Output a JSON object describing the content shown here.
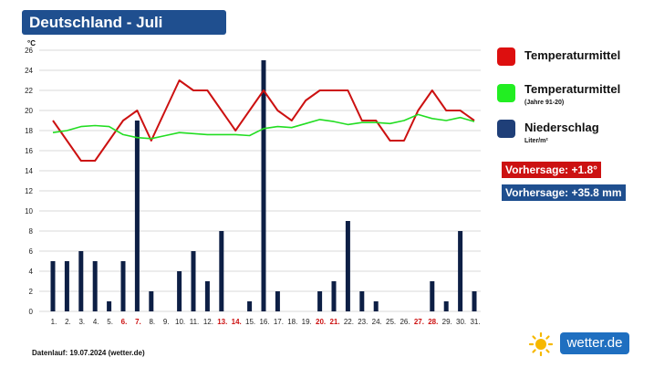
{
  "title": "Deutschland - Juli",
  "legend": {
    "temp_mean": "Temperaturmittel",
    "temp_mean_ref": "Temperaturmittel",
    "temp_mean_ref_sub": "(Jahre 91-20)",
    "precip": "Niederschlag",
    "precip_unit": "Liter/m²"
  },
  "forecast": {
    "temp": "Vorhersage: +1.8°",
    "precip": "Vorhersage: +35.8 mm"
  },
  "footer": "Datenlauf: 19.07.2024 (wetter.de)",
  "logo": {
    "text": "wetter.de"
  },
  "colors": {
    "title_bg": "#1f4f8f",
    "temp": "#cc1111",
    "temp_ref": "#22dd22",
    "precip": "#0d1f45",
    "forecast_temp_bg": "#cc1111",
    "forecast_precip_bg": "#1f4f8f",
    "weekend": "#cc1111"
  },
  "chart_data": {
    "type": "line+bar",
    "ylabel": "°C",
    "ylim": [
      0,
      26
    ],
    "yticks": [
      0,
      2,
      4,
      6,
      8,
      10,
      12,
      14,
      16,
      18,
      20,
      22,
      24,
      26
    ],
    "grid": true,
    "categories": [
      "1.",
      "2.",
      "3.",
      "4.",
      "5.",
      "6.",
      "7.",
      "8.",
      "9.",
      "10.",
      "11.",
      "12.",
      "13.",
      "14.",
      "15.",
      "16.",
      "17.",
      "18.",
      "19.",
      "20.",
      "21.",
      "22.",
      "23.",
      "24.",
      "25.",
      "26.",
      "27.",
      "28.",
      "29.",
      "30.",
      "31."
    ],
    "weekend_days": [
      6,
      7,
      13,
      14,
      20,
      21,
      27,
      28
    ],
    "series": [
      {
        "name": "Temperaturmittel",
        "type": "line",
        "values": [
          19,
          17,
          15,
          15,
          17,
          19,
          20,
          17,
          20,
          23,
          22,
          22,
          20,
          18,
          20,
          22,
          20,
          19,
          21,
          22,
          22,
          22,
          19,
          19,
          17,
          17,
          20,
          22,
          20,
          20,
          19
        ]
      },
      {
        "name": "Temperaturmittel",
        "type": "line",
        "values": [
          17.8,
          18.0,
          18.4,
          18.5,
          18.4,
          17.6,
          17.3,
          17.2,
          17.5,
          17.8,
          17.7,
          17.6,
          17.6,
          17.6,
          17.5,
          18.2,
          18.4,
          18.3,
          18.7,
          19.1,
          18.9,
          18.6,
          18.8,
          18.8,
          18.7,
          19.0,
          19.6,
          19.2,
          19.0,
          19.3,
          18.9
        ]
      },
      {
        "name": "Niederschlag",
        "type": "bar",
        "values": [
          5,
          5,
          6,
          5,
          1,
          5,
          19,
          2,
          0,
          4,
          6,
          3,
          8,
          0,
          1,
          25,
          2,
          0,
          0,
          2,
          3,
          9,
          2,
          1,
          0,
          0,
          0,
          3,
          1,
          8,
          2
        ]
      }
    ]
  }
}
